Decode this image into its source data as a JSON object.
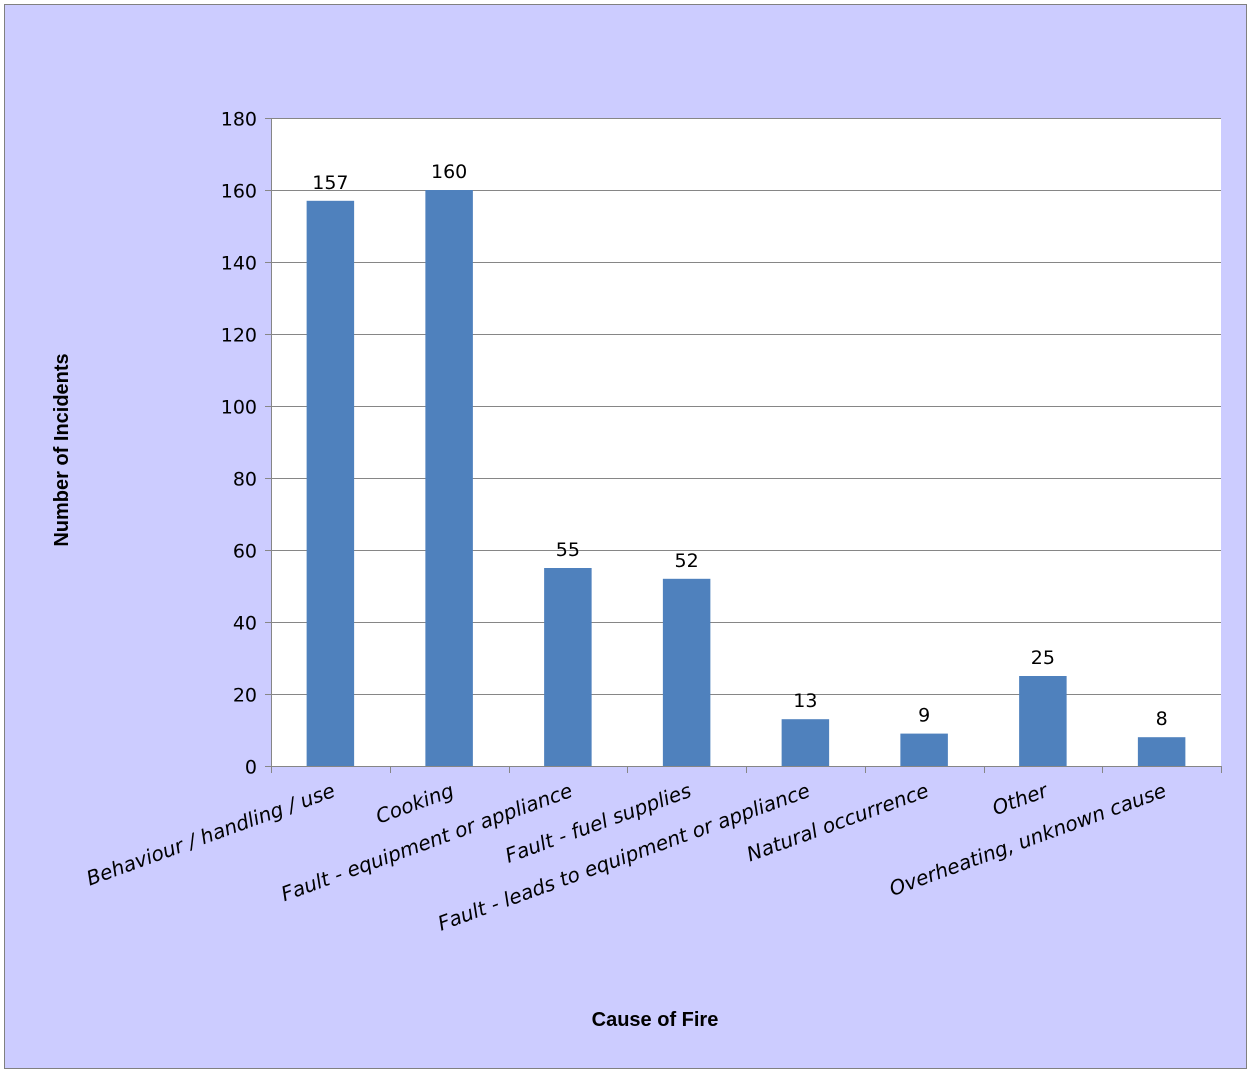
{
  "colors": {
    "chart_area": "#ccccff",
    "chart_border": "#808080",
    "plot_area": "#ffffff",
    "bar": "#4f81bd",
    "gridline": "#868686",
    "axis": "#868686"
  },
  "chart_data": {
    "type": "bar",
    "title": "",
    "xlabel": "Cause of Fire",
    "ylabel": "Number of Incidents",
    "ylim": [
      0,
      180
    ],
    "yticks": [
      0,
      20,
      40,
      60,
      80,
      100,
      120,
      140,
      160,
      180
    ],
    "grid": true,
    "legend": "none",
    "categories": [
      "Behaviour / handling / use",
      "Cooking",
      "Fault - equipment or appliance",
      "Fault - fuel supplies",
      "Fault - leads to equipment or appliance",
      "Natural occurrence",
      "Other",
      "Overheating, unknown cause"
    ],
    "values": [
      157,
      160,
      55,
      52,
      13,
      9,
      25,
      8
    ]
  }
}
